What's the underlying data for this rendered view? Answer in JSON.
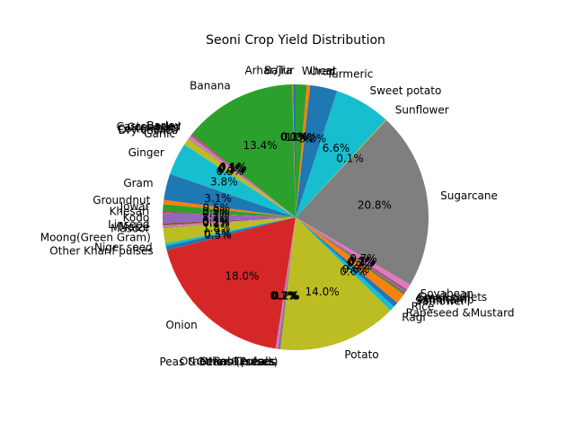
{
  "chart_data": {
    "type": "pie",
    "title": "Seoni Crop Yield Distribution",
    "start_angle_deg": 90,
    "direction": "counterclockwise",
    "autopct_format": "%1.1f%%",
    "slices": [
      {
        "label": "Arhar/Tur",
        "value": 0.3,
        "pct_label": "0.3%",
        "color": "#1f77b4"
      },
      {
        "label": "Bajra",
        "value": 0.1,
        "pct_label": "0.1%",
        "color": "#ff7f0e"
      },
      {
        "label": "Banana",
        "value": 13.4,
        "pct_label": "13.4%",
        "color": "#2ca02c"
      },
      {
        "label": "Barley",
        "value": 0.1,
        "pct_label": "0.1%",
        "color": "#d62728"
      },
      {
        "label": "Castor seed",
        "value": 0.1,
        "pct_label": "0.1%",
        "color": "#9467bd"
      },
      {
        "label": "Coriander",
        "value": 0.1,
        "pct_label": "0.1%",
        "color": "#8c564b"
      },
      {
        "label": "Cotton(lint)",
        "value": 0.3,
        "pct_label": "0.3%",
        "color": "#e377c2"
      },
      {
        "label": "Dry chillies",
        "value": 0.1,
        "pct_label": "0.1%",
        "color": "#7f7f7f"
      },
      {
        "label": "Garlic",
        "value": 0.8,
        "pct_label": "0.8%",
        "color": "#bcbd22"
      },
      {
        "label": "Ginger",
        "value": 3.8,
        "pct_label": "3.8%",
        "color": "#17becf"
      },
      {
        "label": "Gram",
        "value": 3.1,
        "pct_label": "3.1%",
        "color": "#1f77b4"
      },
      {
        "label": "Groundnut",
        "value": 0.5,
        "pct_label": "0.5%",
        "color": "#ff7f0e"
      },
      {
        "label": "Jowar",
        "value": 0.9,
        "pct_label": "0.9%",
        "color": "#2ca02c"
      },
      {
        "label": "Khesari",
        "value": 0.1,
        "pct_label": "0.1%",
        "color": "#d62728"
      },
      {
        "label": "Kodo",
        "value": 1.2,
        "pct_label": "1.2%",
        "color": "#9467bd"
      },
      {
        "label": "Linseed",
        "value": 0.3,
        "pct_label": "0.3%",
        "color": "#8c564b"
      },
      {
        "label": "Maize",
        "value": 0.2,
        "pct_label": "0.2%",
        "color": "#e377c2"
      },
      {
        "label": "Masoor",
        "value": 0.1,
        "pct_label": "0.1%",
        "color": "#7f7f7f"
      },
      {
        "label": "Moong(Green Gram)",
        "value": 1.8,
        "pct_label": "1.8%",
        "color": "#bcbd22"
      },
      {
        "label": "Niger seed",
        "value": 0.3,
        "pct_label": "0.3%",
        "color": "#17becf"
      },
      {
        "label": "Other Kharif pulses",
        "value": 0.5,
        "pct_label": "0.5%",
        "color": "#1f77b4"
      },
      {
        "label": "Onion",
        "value": 18.0,
        "pct_label": "18.0%",
        "color": "#d62728"
      },
      {
        "label": "Other Cereals",
        "value": 0.1,
        "pct_label": "0.1%",
        "color": "#9467bd"
      },
      {
        "label": "Other Rabi pulses",
        "value": 0.2,
        "pct_label": "0.2%",
        "color": "#e377c2"
      },
      {
        "label": "Other Oilseeds",
        "value": 0.1,
        "pct_label": "0.1%",
        "color": "#8c564b"
      },
      {
        "label": "Peas & beans (Pulses)",
        "value": 0.2,
        "pct_label": "0.2%",
        "color": "#7f7f7f"
      },
      {
        "label": "Potato",
        "value": 14.0,
        "pct_label": "14.0%",
        "color": "#bcbd22"
      },
      {
        "label": "Ragi",
        "value": 0.6,
        "pct_label": "0.6%",
        "color": "#17becf"
      },
      {
        "label": "Rapeseed &Mustard",
        "value": 0.6,
        "pct_label": "0.6%",
        "color": "#1f77b4"
      },
      {
        "label": "Rice",
        "value": 1.2,
        "pct_label": "1.2%",
        "color": "#ff7f0e"
      },
      {
        "label": "Safflower",
        "value": 0.2,
        "pct_label": "0.2%",
        "color": "#2ca02c"
      },
      {
        "label": "Sannhamp",
        "value": 0.1,
        "pct_label": "0.1%",
        "color": "#d62728"
      },
      {
        "label": "Sesamum",
        "value": 0.2,
        "pct_label": "0.2%",
        "color": "#9467bd"
      },
      {
        "label": "Small millets",
        "value": 0.2,
        "pct_label": "0.2%",
        "color": "#8c564b"
      },
      {
        "label": "Soyabean",
        "value": 0.7,
        "pct_label": "0.7%",
        "color": "#e377c2"
      },
      {
        "label": "Sugarcane",
        "value": 20.8,
        "pct_label": "20.8%",
        "color": "#7f7f7f"
      },
      {
        "label": "Sunflower",
        "value": 0.1,
        "pct_label": "0.1%",
        "color": "#bcbd22"
      },
      {
        "label": "Sweet potato",
        "value": 6.6,
        "pct_label": "6.6%",
        "color": "#17becf"
      },
      {
        "label": "Turmeric",
        "value": 3.2,
        "pct_label": "3.2%",
        "color": "#1f77b4"
      },
      {
        "label": "Urad",
        "value": 0.4,
        "pct_label": "0.4%",
        "color": "#ff7f0e"
      },
      {
        "label": "Wheat",
        "value": 1.3,
        "pct_label": "1.3%",
        "color": "#2ca02c"
      }
    ]
  }
}
